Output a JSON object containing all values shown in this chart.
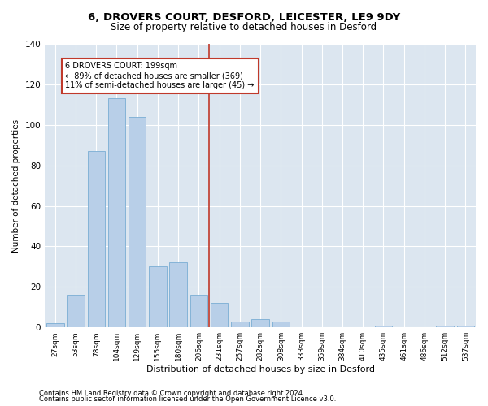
{
  "title": "6, DROVERS COURT, DESFORD, LEICESTER, LE9 9DY",
  "subtitle": "Size of property relative to detached houses in Desford",
  "xlabel": "Distribution of detached houses by size in Desford",
  "ylabel": "Number of detached properties",
  "categories": [
    "27sqm",
    "53sqm",
    "78sqm",
    "104sqm",
    "129sqm",
    "155sqm",
    "180sqm",
    "206sqm",
    "231sqm",
    "257sqm",
    "282sqm",
    "308sqm",
    "333sqm",
    "359sqm",
    "384sqm",
    "410sqm",
    "435sqm",
    "461sqm",
    "486sqm",
    "512sqm",
    "537sqm"
  ],
  "values": [
    2,
    16,
    87,
    113,
    104,
    30,
    32,
    16,
    12,
    3,
    4,
    3,
    0,
    0,
    0,
    0,
    1,
    0,
    0,
    1,
    1
  ],
  "bar_color": "#b8cfe8",
  "bar_edge_color": "#7aadd4",
  "background_color": "#dce6f0",
  "vline_color": "#c0392b",
  "annotation_text": "6 DROVERS COURT: 199sqm\n← 89% of detached houses are smaller (369)\n11% of semi-detached houses are larger (45) →",
  "annotation_box_color": "#ffffff",
  "annotation_box_edge": "#c0392b",
  "footnote1": "Contains HM Land Registry data © Crown copyright and database right 2024.",
  "footnote2": "Contains public sector information licensed under the Open Government Licence v3.0.",
  "ylim": [
    0,
    140
  ],
  "yticks": [
    0,
    20,
    40,
    60,
    80,
    100,
    120,
    140
  ]
}
